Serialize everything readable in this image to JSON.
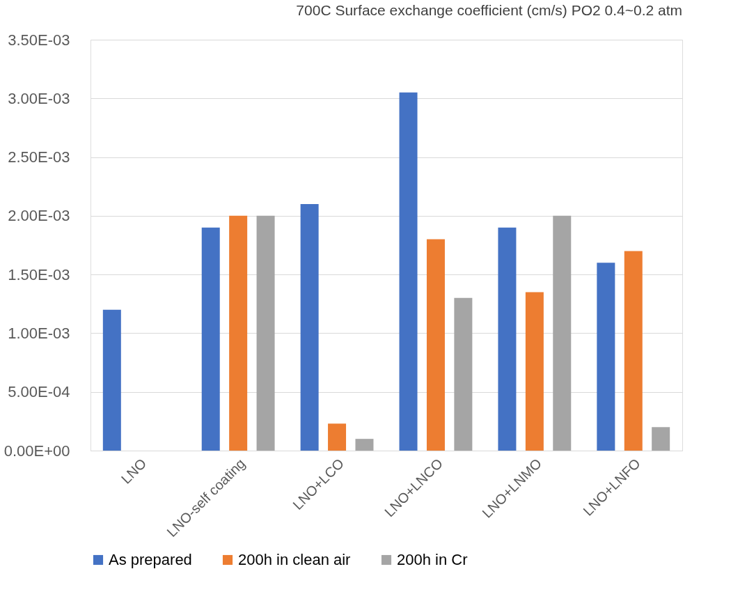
{
  "chart_data": {
    "type": "bar",
    "title": "700C Surface exchange coefficient (cm/s) PO2 0.4~0.2 atm",
    "categories": [
      "LNO",
      "LNO-self coating",
      "LNO+LCO",
      "LNO+LNCO",
      "LNO+LNMO",
      "LNO+LNFO"
    ],
    "series": [
      {
        "name": "As prepared",
        "color": "#4472c4",
        "values": [
          0.0012,
          0.0019,
          0.0021,
          0.00305,
          0.0019,
          0.0016
        ]
      },
      {
        "name": "200h in clean air",
        "color": "#ed7d31",
        "values": [
          null,
          0.002,
          0.00023,
          0.0018,
          0.00135,
          0.0017
        ]
      },
      {
        "name": "200h in Cr",
        "color": "#a5a5a5",
        "values": [
          null,
          0.002,
          0.0001,
          0.0013,
          0.002,
          0.0002
        ]
      }
    ],
    "ylim": [
      0,
      0.0035
    ],
    "yticks": [
      {
        "value": 0,
        "label": "0.00E+00"
      },
      {
        "value": 0.0005,
        "label": "5.00E-04"
      },
      {
        "value": 0.001,
        "label": "1.00E-03"
      },
      {
        "value": 0.0015,
        "label": "1.50E-03"
      },
      {
        "value": 0.002,
        "label": "2.00E-03"
      },
      {
        "value": 0.0025,
        "label": "2.50E-03"
      },
      {
        "value": 0.003,
        "label": "3.00E-03"
      },
      {
        "value": 0.0035,
        "label": "3.50E-03"
      }
    ],
    "grid": "y",
    "legend": "bottom"
  }
}
